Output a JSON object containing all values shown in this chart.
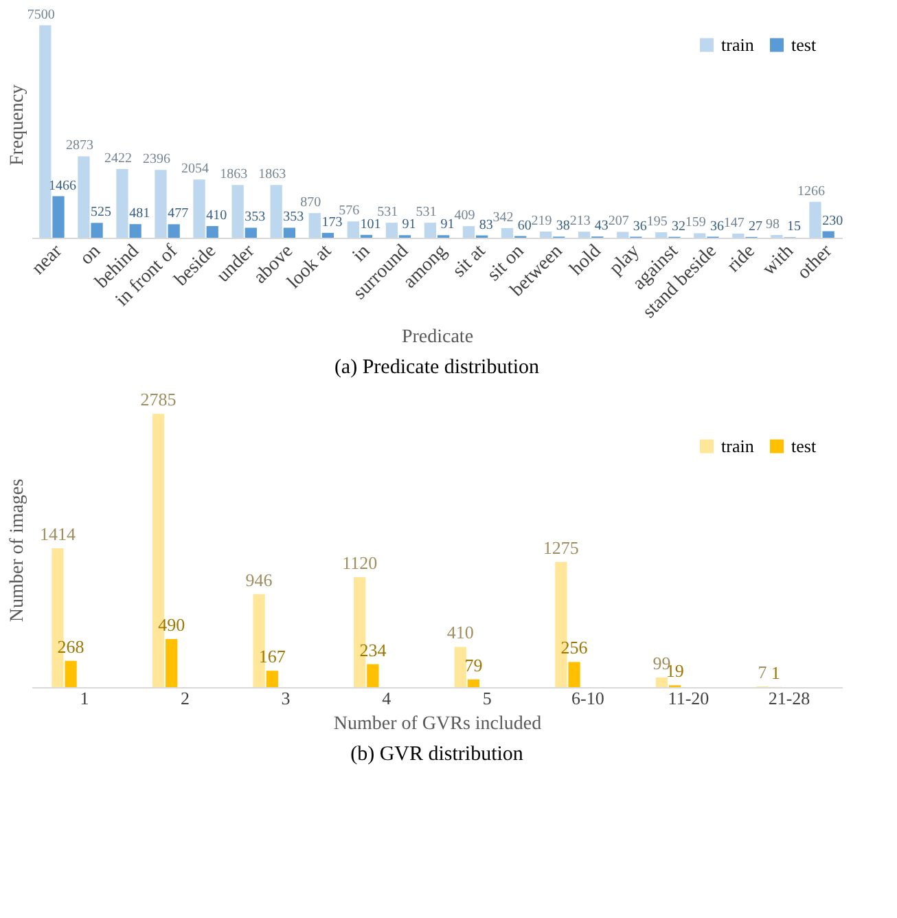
{
  "chart_data": [
    {
      "type": "bar",
      "title": "(a) Predicate distribution",
      "xlabel": "Predicate",
      "ylabel": "Frequency",
      "legend": "top right",
      "data_labels": true,
      "categories": [
        "near",
        "on",
        "behind",
        "in front of",
        "beside",
        "under",
        "above",
        "look at",
        "in",
        "surround",
        "among",
        "sit at",
        "sit on",
        "between",
        "hold",
        "play",
        "against",
        "stand beside",
        "ride",
        "with",
        "other"
      ],
      "series": [
        {
          "name": "train",
          "color": "#bdd7ee",
          "values": [
            7500,
            2873,
            2422,
            2396,
            2054,
            1863,
            1863,
            870,
            576,
            531,
            531,
            409,
            342,
            219,
            213,
            207,
            195,
            159,
            147,
            98,
            1266
          ]
        },
        {
          "name": "test",
          "color": "#5b9bd5",
          "values": [
            1466,
            525,
            481,
            477,
            410,
            353,
            353,
            173,
            101,
            91,
            91,
            83,
            60,
            38,
            43,
            36,
            32,
            36,
            27,
            15,
            230
          ]
        }
      ]
    },
    {
      "type": "bar",
      "title": "(b) GVR distribution",
      "xlabel": "Number of GVRs included",
      "ylabel": "Number of images",
      "legend": "top right",
      "data_labels": true,
      "categories": [
        "1",
        "2",
        "3",
        "4",
        "5",
        "6-10",
        "11-20",
        "21-28"
      ],
      "series": [
        {
          "name": "train",
          "color": "#ffe699",
          "values": [
            1414,
            2785,
            946,
            1120,
            410,
            1275,
            99,
            7
          ]
        },
        {
          "name": "test",
          "color": "#ffc000",
          "values": [
            268,
            490,
            167,
            234,
            79,
            256,
            19,
            1
          ]
        }
      ]
    }
  ]
}
